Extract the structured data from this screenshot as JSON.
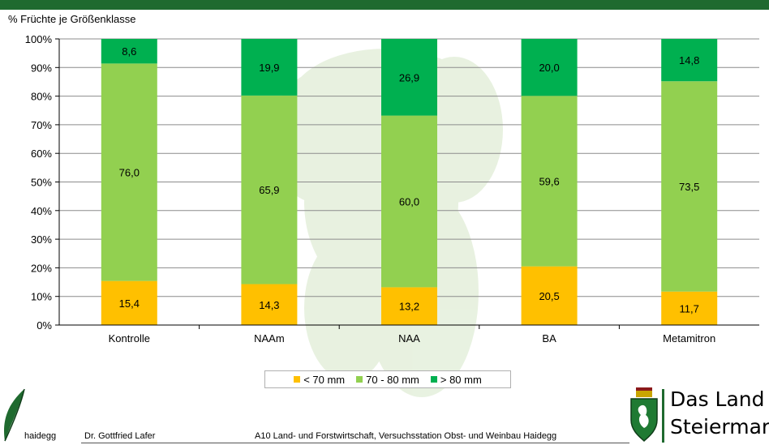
{
  "header": {
    "y_title": "% Früchte je Größenklasse"
  },
  "chart_data": {
    "type": "bar",
    "stacked": true,
    "categories": [
      "Kontrolle",
      "NAAm",
      "NAA",
      "BA",
      "Metamitron"
    ],
    "series": [
      {
        "name": "< 70 mm",
        "color": "#ffc000",
        "values": [
          15.4,
          14.3,
          13.2,
          20.5,
          11.7
        ],
        "labels": [
          "15,4",
          "14,3",
          "13,2",
          "20,5",
          "11,7"
        ]
      },
      {
        "name": "70 - 80 mm",
        "color": "#92d050",
        "values": [
          76.0,
          65.9,
          60.0,
          59.6,
          73.5
        ],
        "labels": [
          "76,0",
          "65,9",
          "60,0",
          "59,6",
          "73,5"
        ]
      },
      {
        "name": "> 80 mm",
        "color": "#00b050",
        "values": [
          8.6,
          19.9,
          26.9,
          20.0,
          14.8
        ],
        "labels": [
          "8,6",
          "19,9",
          "26,9",
          "20,0",
          "14,8"
        ]
      }
    ],
    "yticks": [
      "0%",
      "10%",
      "20%",
      "30%",
      "40%",
      "50%",
      "60%",
      "70%",
      "80%",
      "90%",
      "100%"
    ],
    "ylim": [
      0,
      100
    ],
    "grid": true,
    "legend_position": "bottom"
  },
  "footer": {
    "logo_text": "haidegg",
    "author": "Dr. Gottfried Lafer",
    "institution": "A10 Land- und Forstwirtschaft, Versuchsstation Obst- und Weinbau Haidegg"
  },
  "brand": {
    "line1": "Das Land",
    "line2": "Steiermark"
  }
}
